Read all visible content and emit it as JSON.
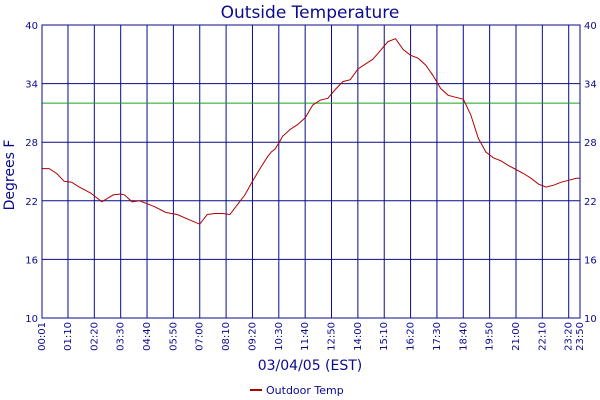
{
  "chart_data": {
    "type": "line",
    "title": "Outside Temperature",
    "xlabel": "03/04/05 (EST)",
    "ylabel": "Degrees F",
    "ylim": [
      10,
      40
    ],
    "yticks": [
      10,
      16,
      22,
      28,
      34,
      40
    ],
    "x_ticks": [
      "00:01",
      "01:10",
      "02:20",
      "03:30",
      "04:40",
      "05:50",
      "07:00",
      "08:10",
      "09:20",
      "10:30",
      "11:40",
      "12:50",
      "14:00",
      "15:10",
      "16:20",
      "17:30",
      "18:40",
      "19:50",
      "21:00",
      "22:10",
      "23:20",
      "23:50"
    ],
    "x_range_minutes": [
      1,
      1430
    ],
    "reference_line": {
      "y": 32,
      "color": "#1aa31a"
    },
    "grid": true,
    "legend_position": "bottom-center",
    "series": [
      {
        "name": "Outdoor Temp",
        "color": "#b00000",
        "x": [
          1,
          20,
          40,
          60,
          80,
          100,
          130,
          160,
          190,
          210,
          220,
          240,
          260,
          280,
          300,
          330,
          360,
          390,
          420,
          440,
          460,
          480,
          500,
          520,
          540,
          560,
          580,
          600,
          610,
          620,
          630,
          640,
          660,
          680,
          700,
          720,
          740,
          760,
          780,
          800,
          820,
          840,
          860,
          880,
          900,
          920,
          940,
          960,
          980,
          1000,
          1020,
          1040,
          1060,
          1080,
          1100,
          1120,
          1140,
          1160,
          1180,
          1200,
          1220,
          1240,
          1260,
          1280,
          1300,
          1320,
          1340,
          1360,
          1380,
          1400,
          1420,
          1430
        ],
        "values": [
          25.3,
          25.3,
          24.8,
          24.0,
          23.9,
          23.4,
          22.8,
          21.9,
          22.6,
          22.7,
          22.6,
          21.9,
          22.0,
          21.7,
          21.4,
          20.8,
          20.6,
          20.1,
          19.6,
          20.6,
          20.7,
          20.7,
          20.6,
          21.6,
          22.6,
          24.0,
          25.3,
          26.5,
          27.0,
          27.3,
          27.9,
          28.6,
          29.3,
          29.8,
          30.5,
          31.8,
          32.3,
          32.5,
          33.4,
          34.2,
          34.4,
          35.5,
          36.0,
          36.5,
          37.4,
          38.3,
          38.6,
          37.5,
          36.9,
          36.6,
          35.9,
          34.8,
          33.5,
          32.8,
          32.6,
          32.4,
          30.8,
          28.4,
          27.0,
          26.4,
          26.1,
          25.6,
          25.2,
          24.8,
          24.3,
          23.7,
          23.4,
          23.6,
          23.9,
          24.1,
          24.3,
          24.3
        ]
      }
    ]
  }
}
